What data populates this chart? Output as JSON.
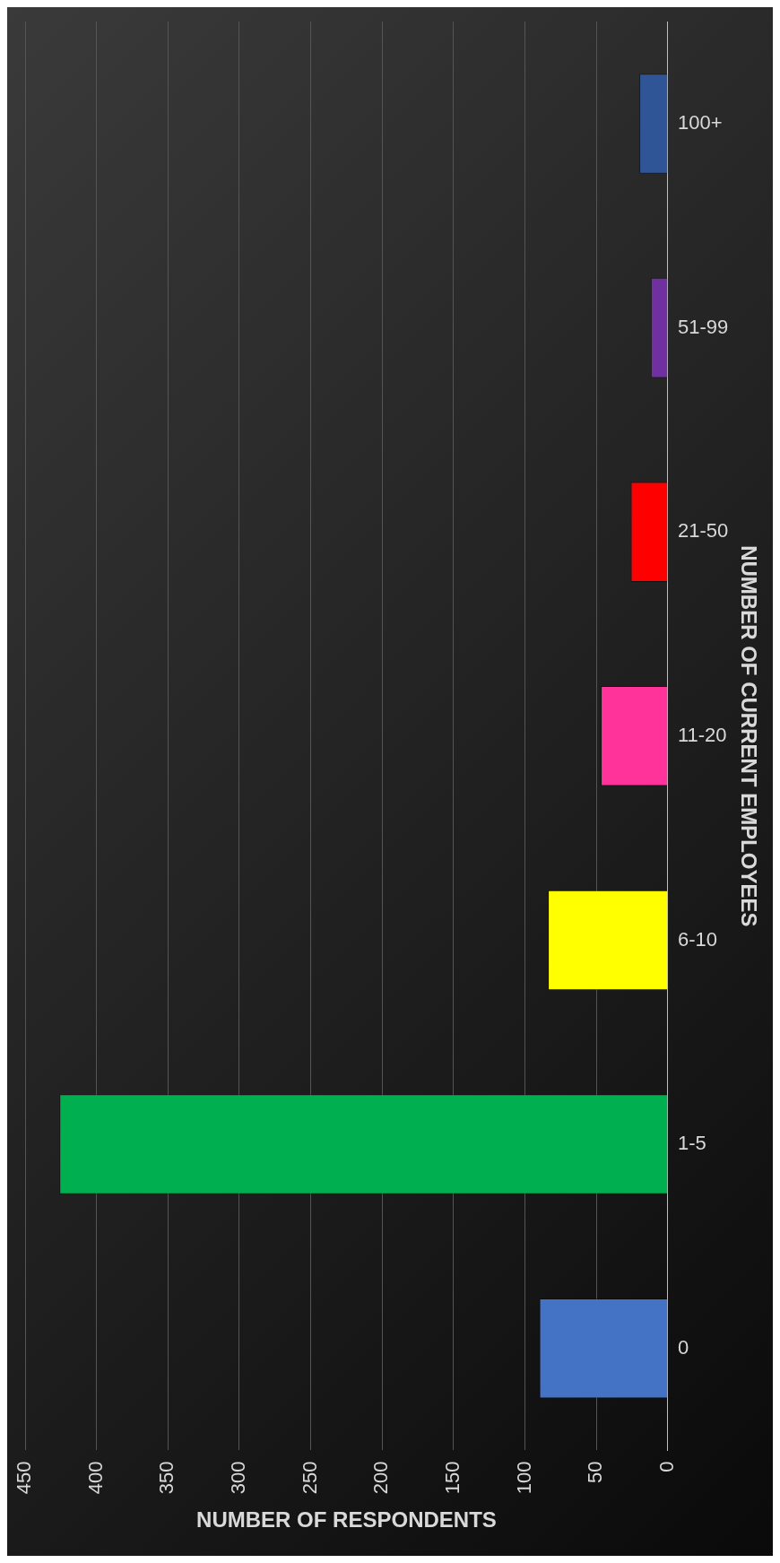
{
  "chart_data": {
    "type": "bar",
    "orientation": "horizontal",
    "xlabel": "NUMBER OF RESPONDENTS",
    "ylabel": "NUMBER OF CURRENT EMPLOYEES",
    "categories": [
      "100+",
      "51-99",
      "21-50",
      "11-20",
      "6-10",
      "1-5",
      "0"
    ],
    "values": [
      20,
      12,
      26,
      47,
      84,
      426,
      90
    ],
    "colors": [
      "#2f5597",
      "#7030a0",
      "#ff0000",
      "#ff3399",
      "#ffff00",
      "#00b050",
      "#4472c4"
    ],
    "xlim": [
      450,
      0
    ],
    "xticks": [
      0,
      50,
      100,
      150,
      200,
      250,
      300,
      350,
      400,
      450
    ],
    "grid": "x"
  }
}
